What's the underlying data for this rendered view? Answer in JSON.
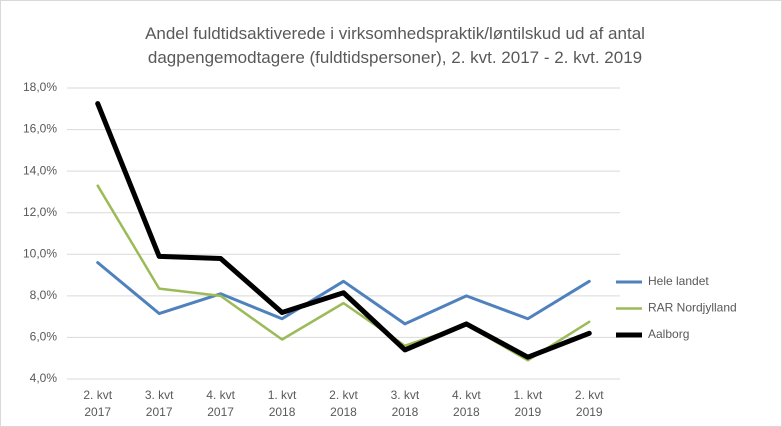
{
  "chart_data": {
    "type": "line",
    "title": "Andel fuldtidsaktiverede i virksomhedspraktik/løntilskud ud af antal dagpengemodtagere (fuldtidspersoner), 2. kvt. 2017 - 2. kvt. 2019",
    "categories": [
      "2. kvt 2017",
      "3. kvt 2017",
      "4. kvt 2017",
      "1. kvt 2018",
      "2. kvt 2018",
      "3. kvt 2018",
      "4. kvt 2018",
      "1. kvt 2019",
      "2. kvt 2019"
    ],
    "series": [
      {
        "name": "Hele landet",
        "color": "#4f81bd",
        "values": [
          9.6,
          7.15,
          8.1,
          6.9,
          8.7,
          6.65,
          8.0,
          6.9,
          8.7
        ]
      },
      {
        "name": "RAR Nordjylland",
        "color": "#9bbb59",
        "values": [
          13.3,
          8.35,
          8.0,
          5.9,
          7.65,
          5.6,
          6.6,
          4.9,
          6.75
        ]
      },
      {
        "name": "Aalborg",
        "color": "#000000",
        "values": [
          17.25,
          9.9,
          9.8,
          7.2,
          8.15,
          5.4,
          6.65,
          5.05,
          6.2
        ]
      }
    ],
    "ylim": [
      4,
      18
    ],
    "yticks": [
      {
        "value": 4,
        "label": "4,0%"
      },
      {
        "value": 6,
        "label": "6,0%"
      },
      {
        "value": 8,
        "label": "8,0%"
      },
      {
        "value": 10,
        "label": "10,0%"
      },
      {
        "value": 12,
        "label": "12,0%"
      },
      {
        "value": 14,
        "label": "14,0%"
      },
      {
        "value": 16,
        "label": "16,0%"
      },
      {
        "value": 18,
        "label": "18,0%"
      }
    ],
    "grid": true,
    "legend": "right"
  }
}
